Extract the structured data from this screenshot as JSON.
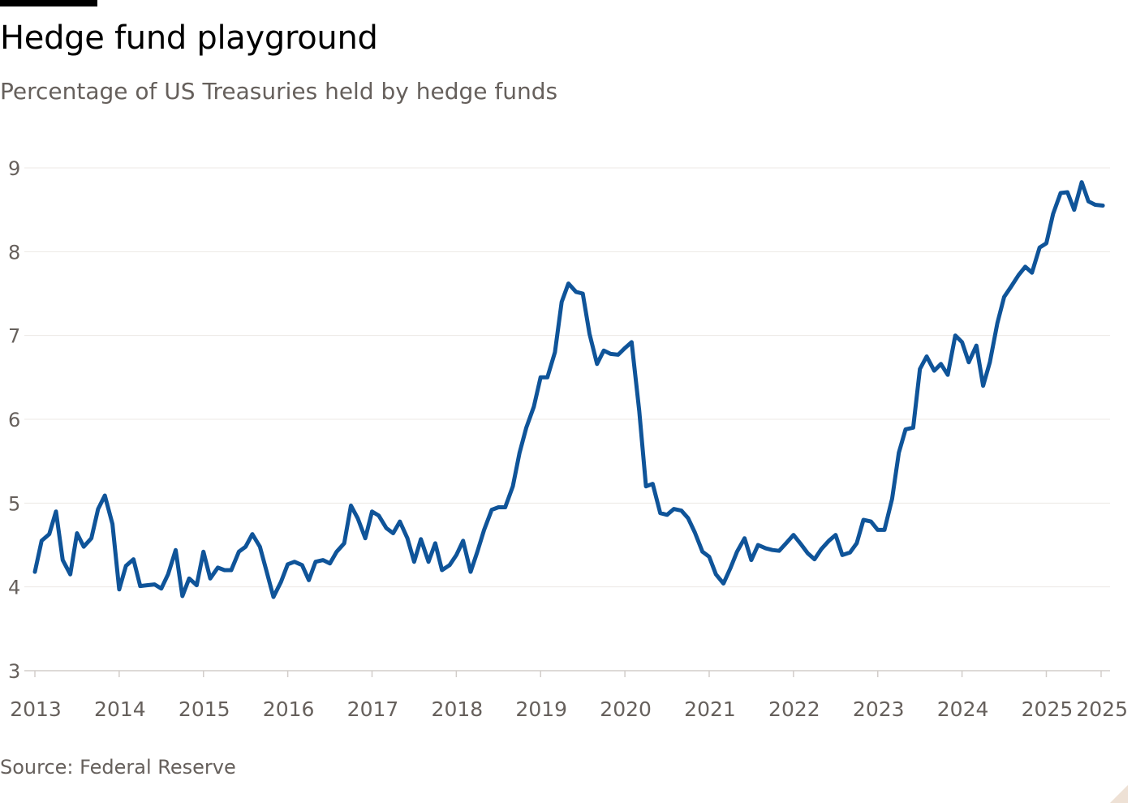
{
  "header": {
    "title": "Hedge fund playground",
    "subtitle": "Percentage of US Treasuries held by hedge funds"
  },
  "footer": {
    "source": "Source: Federal Reserve"
  },
  "colors": {
    "line": "#0f5499",
    "grid": "#ece8e4",
    "axis_text": "#66605c",
    "axis_line": "#d2cdca"
  },
  "chart_data": {
    "type": "line",
    "title": "Hedge fund playground",
    "subtitle": "Percentage of US Treasuries held by hedge funds",
    "xlabel": "",
    "ylabel": "",
    "ylim": [
      3,
      9
    ],
    "yticks": [
      3,
      4,
      5,
      6,
      7,
      8,
      9
    ],
    "xlim": [
      2013.0,
      2025.65
    ],
    "xticks": [
      {
        "value": 2013,
        "label": "2013"
      },
      {
        "value": 2014,
        "label": "2014"
      },
      {
        "value": 2015,
        "label": "2015"
      },
      {
        "value": 2016,
        "label": "2016"
      },
      {
        "value": 2017,
        "label": "2017"
      },
      {
        "value": 2018,
        "label": "2018"
      },
      {
        "value": 2019,
        "label": "2019"
      },
      {
        "value": 2020,
        "label": "2020"
      },
      {
        "value": 2021,
        "label": "2021"
      },
      {
        "value": 2022,
        "label": "2022"
      },
      {
        "value": 2023,
        "label": "2023"
      },
      {
        "value": 2024,
        "label": "2024"
      },
      {
        "value": 2025,
        "label": "2025"
      },
      {
        "value": 2025.67,
        "label": "2025"
      }
    ],
    "grid": "horizontal",
    "series": [
      {
        "points": [
          [
            2013.0,
            4.18
          ],
          [
            2013.08,
            4.55
          ],
          [
            2013.17,
            4.63
          ],
          [
            2013.25,
            4.9
          ],
          [
            2013.33,
            4.32
          ],
          [
            2013.42,
            4.15
          ],
          [
            2013.5,
            4.64
          ],
          [
            2013.58,
            4.48
          ],
          [
            2013.67,
            4.58
          ],
          [
            2013.75,
            4.93
          ],
          [
            2013.83,
            5.09
          ],
          [
            2013.92,
            4.75
          ],
          [
            2014.0,
            3.97
          ],
          [
            2014.08,
            4.25
          ],
          [
            2014.17,
            4.33
          ],
          [
            2014.25,
            4.01
          ],
          [
            2014.33,
            4.02
          ],
          [
            2014.42,
            4.03
          ],
          [
            2014.5,
            3.98
          ],
          [
            2014.58,
            4.15
          ],
          [
            2014.67,
            4.44
          ],
          [
            2014.75,
            3.89
          ],
          [
            2014.83,
            4.1
          ],
          [
            2014.92,
            4.02
          ],
          [
            2015.0,
            4.42
          ],
          [
            2015.08,
            4.1
          ],
          [
            2015.17,
            4.23
          ],
          [
            2015.25,
            4.2
          ],
          [
            2015.33,
            4.2
          ],
          [
            2015.42,
            4.42
          ],
          [
            2015.5,
            4.48
          ],
          [
            2015.58,
            4.63
          ],
          [
            2015.67,
            4.48
          ],
          [
            2015.75,
            4.18
          ],
          [
            2015.83,
            3.88
          ],
          [
            2015.92,
            4.06
          ],
          [
            2016.0,
            4.27
          ],
          [
            2016.08,
            4.3
          ],
          [
            2016.17,
            4.26
          ],
          [
            2016.25,
            4.08
          ],
          [
            2016.33,
            4.3
          ],
          [
            2016.42,
            4.32
          ],
          [
            2016.5,
            4.28
          ],
          [
            2016.58,
            4.42
          ],
          [
            2016.67,
            4.52
          ],
          [
            2016.75,
            4.97
          ],
          [
            2016.83,
            4.82
          ],
          [
            2016.92,
            4.58
          ],
          [
            2017.0,
            4.9
          ],
          [
            2017.08,
            4.85
          ],
          [
            2017.17,
            4.7
          ],
          [
            2017.25,
            4.64
          ],
          [
            2017.33,
            4.78
          ],
          [
            2017.42,
            4.58
          ],
          [
            2017.5,
            4.3
          ],
          [
            2017.58,
            4.57
          ],
          [
            2017.67,
            4.3
          ],
          [
            2017.75,
            4.52
          ],
          [
            2017.83,
            4.2
          ],
          [
            2017.92,
            4.26
          ],
          [
            2018.0,
            4.38
          ],
          [
            2018.08,
            4.55
          ],
          [
            2018.17,
            4.18
          ],
          [
            2018.25,
            4.42
          ],
          [
            2018.33,
            4.68
          ],
          [
            2018.42,
            4.92
          ],
          [
            2018.5,
            4.95
          ],
          [
            2018.58,
            4.95
          ],
          [
            2018.67,
            5.2
          ],
          [
            2018.75,
            5.6
          ],
          [
            2018.83,
            5.9
          ],
          [
            2018.92,
            6.15
          ],
          [
            2019.0,
            6.5
          ],
          [
            2019.08,
            6.5
          ],
          [
            2019.17,
            6.8
          ],
          [
            2019.25,
            7.4
          ],
          [
            2019.33,
            7.62
          ],
          [
            2019.42,
            7.52
          ],
          [
            2019.5,
            7.5
          ],
          [
            2019.58,
            7.02
          ],
          [
            2019.67,
            6.66
          ],
          [
            2019.75,
            6.82
          ],
          [
            2019.83,
            6.78
          ],
          [
            2019.92,
            6.77
          ],
          [
            2020.0,
            6.85
          ],
          [
            2020.08,
            6.92
          ],
          [
            2020.17,
            6.1
          ],
          [
            2020.25,
            5.2
          ],
          [
            2020.33,
            5.23
          ],
          [
            2020.42,
            4.88
          ],
          [
            2020.5,
            4.86
          ],
          [
            2020.58,
            4.93
          ],
          [
            2020.67,
            4.91
          ],
          [
            2020.75,
            4.82
          ],
          [
            2020.83,
            4.65
          ],
          [
            2020.92,
            4.42
          ],
          [
            2021.0,
            4.36
          ],
          [
            2021.08,
            4.15
          ],
          [
            2021.17,
            4.04
          ],
          [
            2021.25,
            4.22
          ],
          [
            2021.33,
            4.42
          ],
          [
            2021.42,
            4.58
          ],
          [
            2021.5,
            4.32
          ],
          [
            2021.58,
            4.5
          ],
          [
            2021.67,
            4.46
          ],
          [
            2021.75,
            4.44
          ],
          [
            2021.83,
            4.43
          ],
          [
            2021.92,
            4.53
          ],
          [
            2022.0,
            4.62
          ],
          [
            2022.08,
            4.52
          ],
          [
            2022.17,
            4.4
          ],
          [
            2022.25,
            4.33
          ],
          [
            2022.33,
            4.45
          ],
          [
            2022.42,
            4.55
          ],
          [
            2022.5,
            4.62
          ],
          [
            2022.58,
            4.38
          ],
          [
            2022.67,
            4.41
          ],
          [
            2022.75,
            4.52
          ],
          [
            2022.83,
            4.8
          ],
          [
            2022.92,
            4.78
          ],
          [
            2023.0,
            4.68
          ],
          [
            2023.08,
            4.68
          ],
          [
            2023.17,
            5.05
          ],
          [
            2023.25,
            5.6
          ],
          [
            2023.33,
            5.88
          ],
          [
            2023.42,
            5.9
          ],
          [
            2023.5,
            6.6
          ],
          [
            2023.58,
            6.75
          ],
          [
            2023.67,
            6.58
          ],
          [
            2023.75,
            6.66
          ],
          [
            2023.83,
            6.53
          ],
          [
            2023.92,
            7.0
          ],
          [
            2024.0,
            6.92
          ],
          [
            2024.08,
            6.68
          ],
          [
            2024.17,
            6.88
          ],
          [
            2024.25,
            6.4
          ],
          [
            2024.33,
            6.68
          ],
          [
            2024.42,
            7.15
          ],
          [
            2024.5,
            7.46
          ],
          [
            2024.58,
            7.58
          ],
          [
            2024.67,
            7.72
          ],
          [
            2024.75,
            7.82
          ],
          [
            2024.83,
            7.75
          ],
          [
            2024.92,
            8.05
          ],
          [
            2025.0,
            8.1
          ],
          [
            2025.08,
            8.45
          ],
          [
            2025.17,
            8.7
          ],
          [
            2025.25,
            8.71
          ],
          [
            2025.33,
            8.5
          ],
          [
            2025.42,
            8.83
          ],
          [
            2025.5,
            8.6
          ],
          [
            2025.58,
            8.56
          ],
          [
            2025.67,
            8.55
          ]
        ]
      }
    ]
  }
}
